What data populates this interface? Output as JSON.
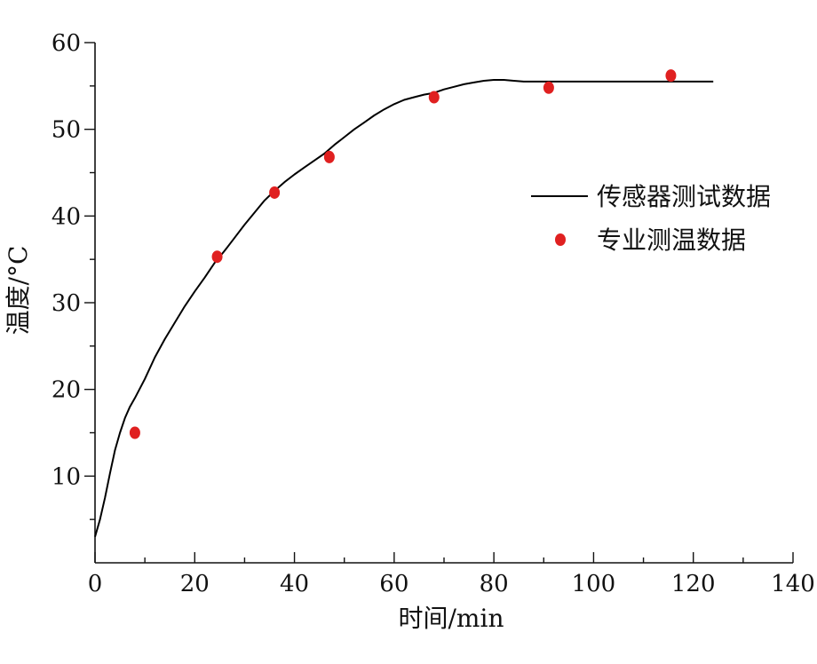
{
  "chart_data": {
    "type": "line",
    "xlabel": "时间/min",
    "ylabel": "温度/°C",
    "xlim": [
      0,
      140
    ],
    "ylim": [
      0,
      60
    ],
    "xticks": [
      0,
      20,
      40,
      60,
      80,
      100,
      120,
      140
    ],
    "yticks": [
      10,
      20,
      30,
      40,
      50,
      60
    ],
    "xtick_labels": [
      "0",
      "20",
      "40",
      "60",
      "80",
      "100",
      "120",
      "140"
    ],
    "ytick_labels": [
      "10",
      "20",
      "30",
      "40",
      "50",
      "60"
    ],
    "grid": false,
    "legend_position": "right",
    "series": [
      {
        "name": "传感器测试数据",
        "type": "line",
        "color": "#000000",
        "x": [
          0,
          1,
          2,
          3,
          4,
          5,
          6,
          7,
          8,
          10,
          12,
          14,
          16,
          18,
          20,
          22,
          24,
          26,
          28,
          30,
          32,
          34,
          36,
          38,
          40,
          42,
          44,
          46,
          48,
          50,
          52,
          54,
          56,
          58,
          60,
          62,
          64,
          66,
          68,
          70,
          72,
          74,
          76,
          78,
          80,
          82,
          84,
          86,
          88,
          90,
          95,
          100,
          105,
          110,
          115,
          120,
          124
        ],
        "y": [
          3.0,
          5.0,
          7.5,
          10.3,
          13.0,
          15.0,
          16.7,
          18.0,
          19.0,
          21.2,
          23.7,
          25.8,
          27.7,
          29.6,
          31.3,
          32.9,
          34.6,
          36.0,
          37.5,
          39.0,
          40.4,
          41.8,
          42.9,
          43.9,
          44.8,
          45.6,
          46.4,
          47.2,
          48.2,
          49.1,
          50.0,
          50.8,
          51.6,
          52.3,
          52.9,
          53.4,
          53.7,
          54.0,
          54.2,
          54.6,
          54.9,
          55.2,
          55.4,
          55.6,
          55.7,
          55.7,
          55.6,
          55.5,
          55.5,
          55.5,
          55.5,
          55.5,
          55.5,
          55.5,
          55.5,
          55.5,
          55.5
        ]
      },
      {
        "name": "专业测温数据",
        "type": "scatter",
        "color": "#e02020",
        "x": [
          8,
          24.5,
          36,
          47,
          68,
          91,
          115.5
        ],
        "y": [
          15.0,
          35.3,
          42.7,
          46.8,
          53.7,
          54.8,
          56.2
        ]
      }
    ]
  }
}
